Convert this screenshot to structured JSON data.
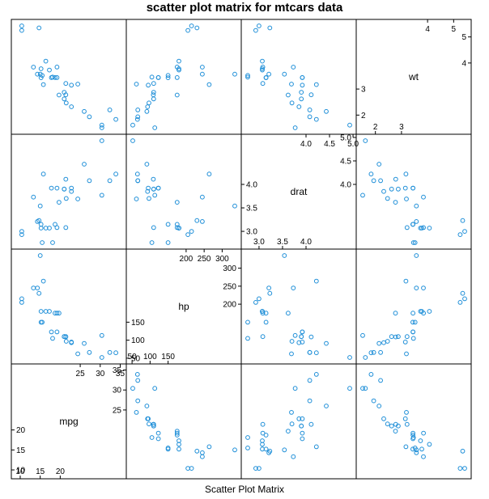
{
  "chart_data": {
    "type": "scatter",
    "title": "scatter plot matrix for mtcars data",
    "xlabel": "Scatter Plot Matrix",
    "variables": [
      "mpg",
      "hp",
      "drat",
      "wt"
    ],
    "diagonal_ticks": {
      "mpg": {
        "low": [
          10,
          15,
          20
        ],
        "high": [
          25,
          30,
          35
        ]
      },
      "hp": {
        "low": [
          50,
          100,
          150
        ],
        "high": [
          200,
          250,
          300
        ]
      },
      "drat": {
        "low": [
          3.0,
          3.5,
          4.0
        ],
        "high": [
          4.0,
          4.5,
          5.0
        ]
      },
      "wt": {
        "low": [
          2,
          3
        ],
        "high": [
          4,
          5
        ]
      }
    },
    "ranges": {
      "mpg": [
        9.4,
        34.9
      ],
      "hp": [
        52,
        335
      ],
      "drat": [
        2.76,
        4.93
      ],
      "wt": [
        1.513,
        5.424
      ]
    },
    "points": {
      "mpg": [
        21.0,
        21.0,
        22.8,
        21.4,
        18.7,
        18.1,
        14.3,
        24.4,
        22.8,
        19.2,
        17.8,
        16.4,
        17.3,
        15.2,
        10.4,
        10.4,
        14.7,
        32.4,
        30.4,
        33.9,
        21.5,
        15.5,
        15.2,
        13.3,
        19.2,
        27.3,
        26.0,
        30.4,
        15.8,
        19.7,
        15.0,
        21.4
      ],
      "hp": [
        110,
        110,
        93,
        110,
        175,
        105,
        245,
        62,
        95,
        123,
        123,
        180,
        180,
        180,
        205,
        215,
        230,
        66,
        52,
        65,
        97,
        150,
        150,
        245,
        175,
        66,
        91,
        113,
        264,
        175,
        335,
        109
      ],
      "drat": [
        3.9,
        3.9,
        3.85,
        3.08,
        3.15,
        2.76,
        3.21,
        3.69,
        3.92,
        3.92,
        3.92,
        3.07,
        3.07,
        3.07,
        2.93,
        3.0,
        3.23,
        4.08,
        4.93,
        4.22,
        3.7,
        2.76,
        3.15,
        3.73,
        3.08,
        4.08,
        4.43,
        3.77,
        4.22,
        3.62,
        3.54,
        4.11
      ],
      "wt": [
        2.62,
        2.875,
        2.32,
        3.215,
        3.44,
        3.46,
        3.57,
        3.19,
        3.15,
        3.44,
        3.44,
        4.07,
        3.73,
        3.78,
        5.25,
        5.424,
        5.345,
        2.2,
        1.615,
        1.835,
        2.465,
        3.52,
        3.435,
        3.84,
        3.845,
        1.935,
        2.14,
        1.513,
        3.17,
        2.77,
        3.57,
        2.78
      ]
    }
  }
}
